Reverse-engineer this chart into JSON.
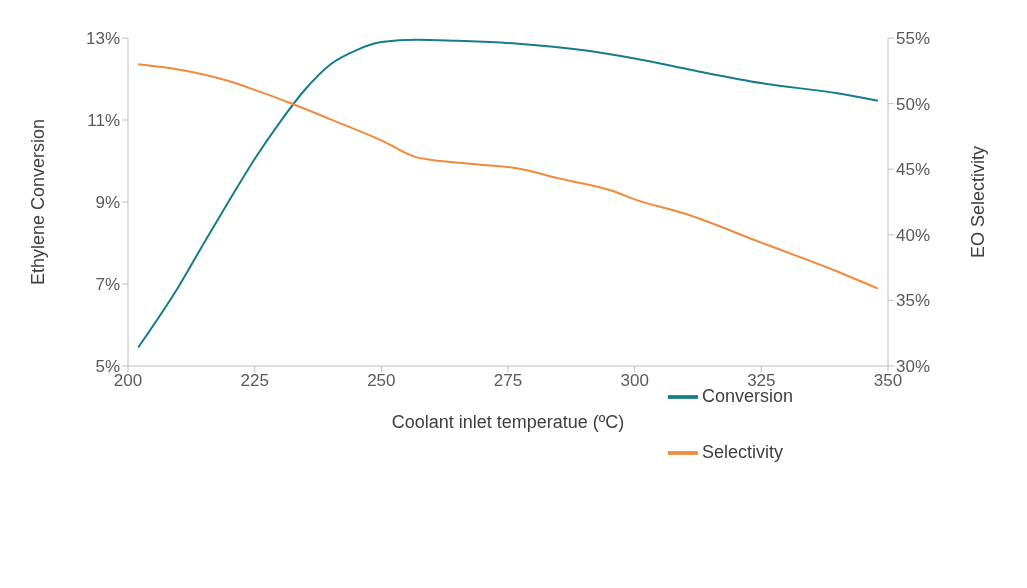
{
  "chart_data": {
    "type": "line",
    "xlabel": "Coolant inlet temperatue (ºC)",
    "ylabel": "Ethylene Conversion",
    "y2label": "EO Selectivity",
    "xlim": [
      200,
      350
    ],
    "xticks": [
      200,
      225,
      250,
      275,
      300,
      325,
      350
    ],
    "ylim": [
      5,
      13
    ],
    "yticks": [
      {
        "value": 5,
        "label": "5%"
      },
      {
        "value": 7,
        "label": "7%"
      },
      {
        "value": 9,
        "label": "9%"
      },
      {
        "value": 11,
        "label": "11%"
      },
      {
        "value": 13,
        "label": "13%"
      }
    ],
    "y2lim": [
      30,
      55
    ],
    "y2ticks": [
      {
        "value": 30,
        "label": "30%"
      },
      {
        "value": 35,
        "label": "35%"
      },
      {
        "value": 40,
        "label": "40%"
      },
      {
        "value": 45,
        "label": "45%"
      },
      {
        "value": 50,
        "label": "50%"
      },
      {
        "value": 55,
        "label": "55%"
      }
    ],
    "grid": false,
    "legend": "bottom right",
    "marker": "none",
    "line_style": "solid",
    "series": [
      {
        "name": "Conversion",
        "color": "#167c8c",
        "x": [
          202,
          210,
          215,
          220,
          225,
          230,
          235,
          240,
          245,
          250,
          257,
          265,
          277,
          290,
          300,
          312,
          325,
          340,
          348
        ],
        "values": [
          5.45,
          6.94,
          8.0,
          9.04,
          10.05,
          10.95,
          11.75,
          12.36,
          12.7,
          12.9,
          12.96,
          12.93,
          12.86,
          12.7,
          12.5,
          12.2,
          11.9,
          11.65,
          11.47
        ]
      },
      {
        "name": "Selectivity",
        "color": "#f08a3c",
        "axis": "y2",
        "x": [
          202,
          210,
          220,
          225,
          232,
          240,
          250,
          257,
          260,
          268,
          277,
          285,
          296,
          300,
          310,
          325,
          340,
          348
        ],
        "values": [
          53.0,
          52.6,
          51.7,
          51.05,
          50.05,
          48.8,
          47.2,
          45.9,
          45.7,
          45.4,
          45.05,
          44.3,
          43.3,
          42.7,
          41.6,
          39.4,
          37.2,
          35.9
        ]
      }
    ]
  }
}
